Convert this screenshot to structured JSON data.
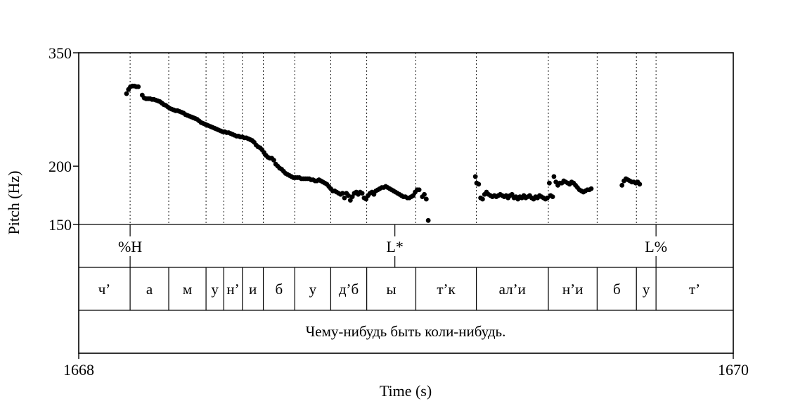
{
  "chart_data": {
    "type": "scatter",
    "xlabel": "Time (s)",
    "ylabel": "Pitch (Hz)",
    "xlim": [
      1668,
      1670
    ],
    "ylim": [
      150,
      350
    ],
    "y_scale": "log",
    "yticks": [
      {
        "value": 150,
        "label": "150"
      },
      {
        "value": 200,
        "label": "200"
      },
      {
        "value": 350,
        "label": "350"
      }
    ],
    "xticks": [
      {
        "value": 1668,
        "label": "1668"
      },
      {
        "value": 1670,
        "label": "1670"
      }
    ],
    "grid": false,
    "points": [
      [
        1668.146,
        286
      ],
      [
        1668.152,
        292
      ],
      [
        1668.158,
        296
      ],
      [
        1668.164,
        297
      ],
      [
        1668.17,
        297
      ],
      [
        1668.176,
        296
      ],
      [
        1668.182,
        296
      ],
      [
        1668.194,
        284
      ],
      [
        1668.2,
        280
      ],
      [
        1668.206,
        279
      ],
      [
        1668.212,
        279
      ],
      [
        1668.218,
        279
      ],
      [
        1668.224,
        278
      ],
      [
        1668.23,
        278
      ],
      [
        1668.236,
        277
      ],
      [
        1668.242,
        276
      ],
      [
        1668.248,
        275
      ],
      [
        1668.254,
        273
      ],
      [
        1668.26,
        271
      ],
      [
        1668.266,
        270
      ],
      [
        1668.272,
        268
      ],
      [
        1668.278,
        266
      ],
      [
        1668.284,
        265
      ],
      [
        1668.29,
        264
      ],
      [
        1668.296,
        263
      ],
      [
        1668.302,
        263
      ],
      [
        1668.308,
        262
      ],
      [
        1668.314,
        261
      ],
      [
        1668.32,
        260
      ],
      [
        1668.326,
        258
      ],
      [
        1668.332,
        257
      ],
      [
        1668.338,
        256
      ],
      [
        1668.344,
        255
      ],
      [
        1668.35,
        254
      ],
      [
        1668.356,
        253
      ],
      [
        1668.362,
        252
      ],
      [
        1668.368,
        250
      ],
      [
        1668.374,
        248
      ],
      [
        1668.38,
        247
      ],
      [
        1668.386,
        246
      ],
      [
        1668.392,
        245
      ],
      [
        1668.398,
        244
      ],
      [
        1668.404,
        243
      ],
      [
        1668.41,
        242
      ],
      [
        1668.416,
        241
      ],
      [
        1668.422,
        240
      ],
      [
        1668.428,
        239
      ],
      [
        1668.434,
        238
      ],
      [
        1668.44,
        237
      ],
      [
        1668.446,
        237
      ],
      [
        1668.452,
        236
      ],
      [
        1668.458,
        236
      ],
      [
        1668.464,
        235
      ],
      [
        1668.47,
        234
      ],
      [
        1668.476,
        233
      ],
      [
        1668.482,
        232
      ],
      [
        1668.488,
        232
      ],
      [
        1668.494,
        231
      ],
      [
        1668.5,
        231
      ],
      [
        1668.506,
        230
      ],
      [
        1668.512,
        230
      ],
      [
        1668.518,
        229
      ],
      [
        1668.524,
        228
      ],
      [
        1668.53,
        227
      ],
      [
        1668.536,
        225
      ],
      [
        1668.542,
        222
      ],
      [
        1668.548,
        220
      ],
      [
        1668.554,
        219
      ],
      [
        1668.56,
        217
      ],
      [
        1668.566,
        214
      ],
      [
        1668.572,
        211
      ],
      [
        1668.578,
        209
      ],
      [
        1668.584,
        208
      ],
      [
        1668.59,
        208
      ],
      [
        1668.596,
        206
      ],
      [
        1668.602,
        202
      ],
      [
        1668.608,
        200
      ],
      [
        1668.614,
        198
      ],
      [
        1668.62,
        197
      ],
      [
        1668.626,
        195
      ],
      [
        1668.632,
        193
      ],
      [
        1668.638,
        192
      ],
      [
        1668.644,
        191
      ],
      [
        1668.65,
        190
      ],
      [
        1668.656,
        189
      ],
      [
        1668.662,
        189
      ],
      [
        1668.668,
        189
      ],
      [
        1668.674,
        189
      ],
      [
        1668.68,
        188
      ],
      [
        1668.686,
        188
      ],
      [
        1668.692,
        188
      ],
      [
        1668.698,
        188
      ],
      [
        1668.704,
        188
      ],
      [
        1668.71,
        187
      ],
      [
        1668.716,
        187
      ],
      [
        1668.722,
        186
      ],
      [
        1668.728,
        186
      ],
      [
        1668.734,
        187
      ],
      [
        1668.74,
        186
      ],
      [
        1668.746,
        185
      ],
      [
        1668.752,
        184
      ],
      [
        1668.758,
        183
      ],
      [
        1668.764,
        181
      ],
      [
        1668.77,
        179
      ],
      [
        1668.776,
        177
      ],
      [
        1668.782,
        177
      ],
      [
        1668.788,
        176
      ],
      [
        1668.794,
        175
      ],
      [
        1668.8,
        174
      ],
      [
        1668.806,
        175
      ],
      [
        1668.812,
        171
      ],
      [
        1668.818,
        175
      ],
      [
        1668.824,
        173
      ],
      [
        1668.83,
        169
      ],
      [
        1668.836,
        172
      ],
      [
        1668.842,
        175
      ],
      [
        1668.848,
        176
      ],
      [
        1668.854,
        174
      ],
      [
        1668.86,
        176
      ],
      [
        1668.866,
        175
      ],
      [
        1668.872,
        171
      ],
      [
        1668.878,
        170
      ],
      [
        1668.884,
        173
      ],
      [
        1668.89,
        175
      ],
      [
        1668.896,
        176
      ],
      [
        1668.902,
        174
      ],
      [
        1668.908,
        177
      ],
      [
        1668.914,
        178
      ],
      [
        1668.92,
        179
      ],
      [
        1668.926,
        180
      ],
      [
        1668.932,
        180
      ],
      [
        1668.938,
        181
      ],
      [
        1668.944,
        180
      ],
      [
        1668.95,
        179
      ],
      [
        1668.956,
        178
      ],
      [
        1668.962,
        177
      ],
      [
        1668.968,
        176
      ],
      [
        1668.974,
        175
      ],
      [
        1668.98,
        174
      ],
      [
        1668.986,
        173
      ],
      [
        1668.992,
        172
      ],
      [
        1668.998,
        172
      ],
      [
        1669.004,
        171
      ],
      [
        1669.01,
        171
      ],
      [
        1669.016,
        172
      ],
      [
        1669.022,
        173
      ],
      [
        1669.028,
        176
      ],
      [
        1669.034,
        178
      ],
      [
        1669.04,
        178
      ],
      [
        1669.05,
        172
      ],
      [
        1669.056,
        174
      ],
      [
        1669.062,
        170
      ],
      [
        1669.068,
        153
      ],
      [
        1669.212,
        190
      ],
      [
        1669.216,
        184
      ],
      [
        1669.222,
        183
      ],
      [
        1669.228,
        171
      ],
      [
        1669.234,
        170
      ],
      [
        1669.24,
        174
      ],
      [
        1669.246,
        176
      ],
      [
        1669.252,
        174
      ],
      [
        1669.258,
        173
      ],
      [
        1669.264,
        172
      ],
      [
        1669.27,
        173
      ],
      [
        1669.276,
        172
      ],
      [
        1669.282,
        173
      ],
      [
        1669.288,
        174
      ],
      [
        1669.294,
        173
      ],
      [
        1669.3,
        172
      ],
      [
        1669.306,
        173
      ],
      [
        1669.312,
        171
      ],
      [
        1669.318,
        173
      ],
      [
        1669.324,
        174
      ],
      [
        1669.33,
        171
      ],
      [
        1669.336,
        172
      ],
      [
        1669.342,
        170
      ],
      [
        1669.348,
        172
      ],
      [
        1669.354,
        171
      ],
      [
        1669.36,
        173
      ],
      [
        1669.366,
        171
      ],
      [
        1669.372,
        172
      ],
      [
        1669.378,
        173
      ],
      [
        1669.384,
        171
      ],
      [
        1669.39,
        170
      ],
      [
        1669.396,
        172
      ],
      [
        1669.402,
        171
      ],
      [
        1669.408,
        173
      ],
      [
        1669.414,
        172
      ],
      [
        1669.42,
        171
      ],
      [
        1669.426,
        170
      ],
      [
        1669.432,
        171
      ],
      [
        1669.438,
        184
      ],
      [
        1669.442,
        173
      ],
      [
        1669.448,
        172
      ],
      [
        1669.452,
        190
      ],
      [
        1669.458,
        185
      ],
      [
        1669.464,
        182
      ],
      [
        1669.47,
        184
      ],
      [
        1669.476,
        184
      ],
      [
        1669.482,
        186
      ],
      [
        1669.488,
        185
      ],
      [
        1669.494,
        184
      ],
      [
        1669.5,
        183
      ],
      [
        1669.506,
        185
      ],
      [
        1669.512,
        184
      ],
      [
        1669.518,
        182
      ],
      [
        1669.524,
        180
      ],
      [
        1669.53,
        178
      ],
      [
        1669.536,
        177
      ],
      [
        1669.542,
        176
      ],
      [
        1669.548,
        177
      ],
      [
        1669.554,
        178
      ],
      [
        1669.56,
        178
      ],
      [
        1669.566,
        179
      ],
      [
        1669.66,
        182
      ],
      [
        1669.666,
        186
      ],
      [
        1669.672,
        188
      ],
      [
        1669.678,
        187
      ],
      [
        1669.684,
        186
      ],
      [
        1669.69,
        185
      ],
      [
        1669.696,
        185
      ],
      [
        1669.702,
        184
      ],
      [
        1669.708,
        185
      ],
      [
        1669.714,
        183
      ]
    ],
    "tone_tier": {
      "labels": [
        {
          "time": 1668.157,
          "text": "%H"
        },
        {
          "time": 1668.966,
          "text": "L*"
        },
        {
          "time": 1669.764,
          "text": "L%"
        }
      ]
    },
    "word_tier": {
      "boundaries": [
        1668.157,
        1668.275,
        1668.389,
        1668.443,
        1668.5,
        1668.564,
        1668.66,
        1668.77,
        1668.88,
        1669.03,
        1669.215,
        1669.435,
        1669.584,
        1669.704,
        1669.764
      ],
      "labels": [
        "ч’",
        "а",
        "м",
        "у",
        "н’",
        "и",
        "б",
        "у",
        "д’б",
        "ы",
        "т’к",
        "ал’и",
        "н’и",
        "б",
        "у",
        "т’"
      ]
    },
    "sentence_tier": {
      "text": "Чему-нибудь быть коли-нибудь."
    }
  }
}
